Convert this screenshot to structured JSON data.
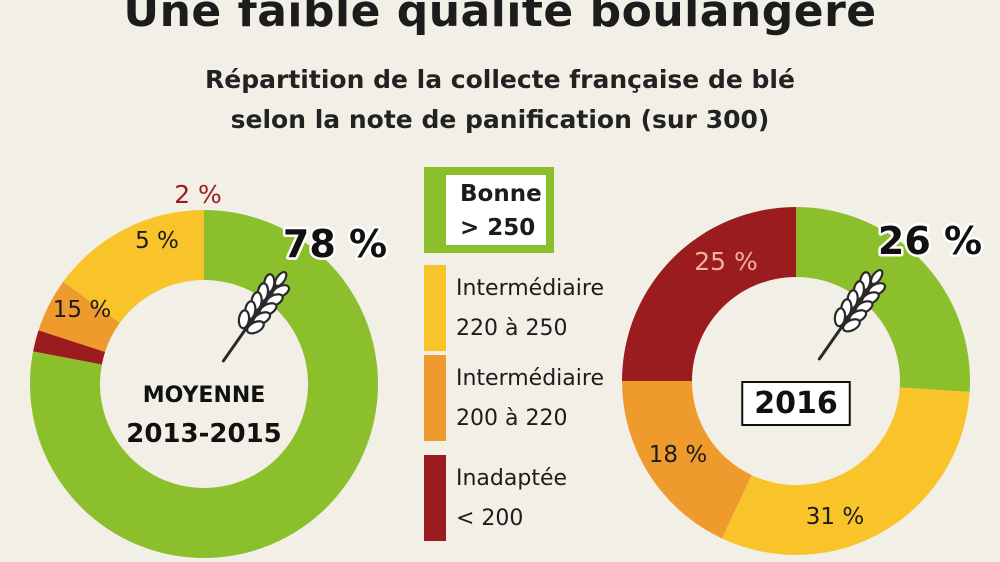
{
  "title": "Une faible qualité boulangère",
  "subtitle_line1": "Répartition de la collecte française de blé",
  "subtitle_line2": "selon la note de panification (sur 300)",
  "colors": {
    "bonne": "#8cbf2c",
    "intermediaire_220_250": "#f8c42a",
    "intermediaire_200_220": "#ef9a2c",
    "inadaptee": "#9b1c1f",
    "background": "#f2f0e6"
  },
  "legend": [
    {
      "key": "bonne",
      "line1": "Bonne",
      "line2": "> 250",
      "boxed": true
    },
    {
      "key": "intermediaire_220_250",
      "line1": "Intermédiaire",
      "line2": "220 à 250",
      "boxed": false
    },
    {
      "key": "intermediaire_200_220",
      "line1": "Intermédiaire",
      "line2": "200 à 220",
      "boxed": false
    },
    {
      "key": "inadaptee",
      "line1": "Inadaptée",
      "line2": "< 200",
      "boxed": false
    }
  ],
  "chart_data": [
    {
      "type": "pie",
      "donut": true,
      "center_label_line1": "MOYENNE",
      "center_label_line2": "2013-2015",
      "center_label_boxed": false,
      "slices": [
        {
          "key": "bonne",
          "value": 78,
          "label": "78 %"
        },
        {
          "key": "inadaptee",
          "value": 2,
          "label": "2 %"
        },
        {
          "key": "intermediaire_200_220",
          "value": 5,
          "label": "5 %"
        },
        {
          "key": "intermediaire_220_250",
          "value": 15,
          "label": "15 %"
        }
      ]
    },
    {
      "type": "pie",
      "donut": true,
      "center_label_line1": "2016",
      "center_label_line2": "",
      "center_label_boxed": true,
      "slices": [
        {
          "key": "bonne",
          "value": 26,
          "label": "26 %"
        },
        {
          "key": "intermediaire_220_250",
          "value": 31,
          "label": "31 %"
        },
        {
          "key": "intermediaire_200_220",
          "value": 18,
          "label": "18 %"
        },
        {
          "key": "inadaptee",
          "value": 25,
          "label": "25 %"
        }
      ]
    }
  ]
}
